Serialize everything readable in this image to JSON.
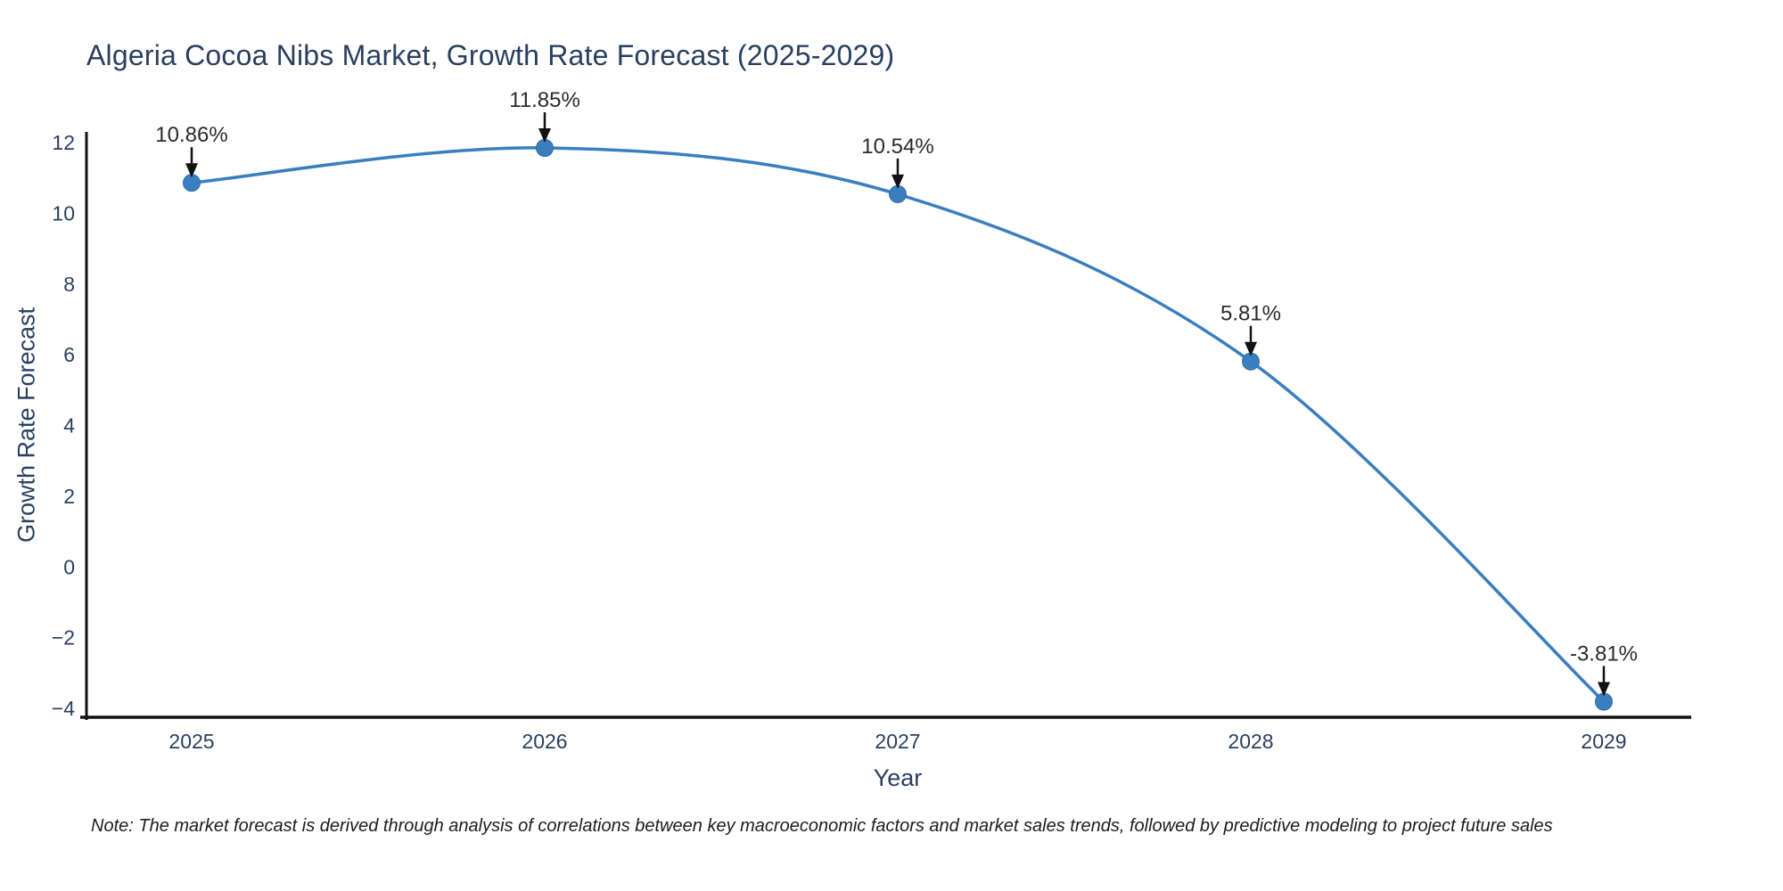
{
  "title": "Algeria Cocoa Nibs Market, Growth Rate Forecast (2025-2029)",
  "note": "Note: The market forecast is derived through analysis of correlations between key macroeconomic factors and market sales trends, followed by predictive modeling to project future sales",
  "chart_data": {
    "type": "line",
    "title": "Algeria Cocoa Nibs Market, Growth Rate Forecast (2025-2029)",
    "xlabel": "Year",
    "ylabel": "Growth Rate Forecast",
    "categories": [
      "2025",
      "2026",
      "2027",
      "2028",
      "2029"
    ],
    "values": [
      10.86,
      11.85,
      10.54,
      5.81,
      -3.81
    ],
    "point_labels": [
      "10.86%",
      "11.85%",
      "10.54%",
      "5.81%",
      "-3.81%"
    ],
    "yticks": [
      12,
      10,
      8,
      6,
      4,
      2,
      0,
      -2,
      -4
    ],
    "ylim": [
      -4,
      12
    ],
    "grid": false,
    "legend": "none",
    "curve": "spline",
    "line_color": "#3a7ebf",
    "marker_color": "#3a7ebf"
  },
  "colors": {
    "text": "#2a3f5f",
    "annotation_text": "#2b2b2b",
    "annotation_arrow": "#111111",
    "axis": "#111111",
    "background": "#ffffff"
  }
}
